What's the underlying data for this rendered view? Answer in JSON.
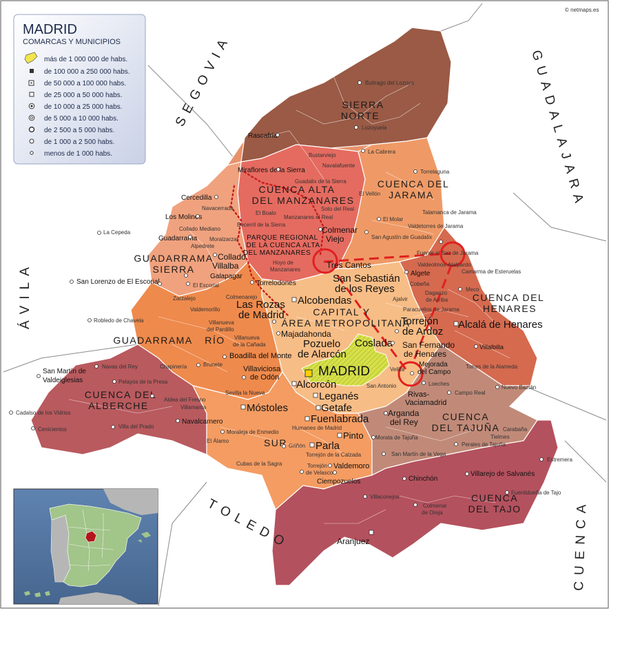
{
  "copyright": "© netmaps.es",
  "legend": {
    "title": "MADRID",
    "subtitle": "COMARCAS Y MUNICIPIOS",
    "items": [
      "más de 1 000 000 de habs.",
      "de 100 000 a 250 000 habs.",
      "de 50 000 a 100 000 habs.",
      "de 25 000 a 50 000 habs.",
      "de 10 000 a 25 000 habs.",
      "de 5 000 a 10 000 habs.",
      "de 2 500 a 5 000 habs.",
      "de 1 000 a 2 500 habs.",
      "menos de 1 000 habs."
    ]
  },
  "provinces": {
    "segovia": "SEGOVIA",
    "guadalajara": "GUADALAJARA",
    "avila": "ÁVILA",
    "toledo": "TOLEDO",
    "cuenca": "CUENCA"
  },
  "comarcas": {
    "sierra_norte_1": "SIERRA",
    "sierra_norte_2": "NORTE",
    "cuenca_alta_1": "CUENCA ALTA",
    "cuenca_alta_2": "DEL MANZANARES",
    "cuenca_jarama_1": "CUENCA DEL",
    "cuenca_jarama_2": "JARAMA",
    "guadarrama_sierra_1": "GUADARRAMA",
    "guadarrama_sierra_2": "SIERRA",
    "cuenca_henares_1": "CUENCA DEL",
    "cuenca_henares_2": "HENARES",
    "capital_1": "CAPITAL Y",
    "capital_2": "ÁREA METROPOLITANA",
    "guadarrama_rio_1": "GUADARRAMA",
    "guadarrama_rio_2": "RÍO",
    "cuenca_alberche_1": "CUENCA DEL",
    "cuenca_alberche_2": "ALBERCHE",
    "sur": "SUR",
    "cuenca_tajuna_1": "CUENCA",
    "cuenca_tajuna_2": "DEL TAJUÑA",
    "cuenca_tajo_1": "CUENCA",
    "cuenca_tajo_2": "DEL TAJO",
    "parque_1": "PARQUE REGIONAL",
    "parque_2": "DE LA CUENCA ALTA",
    "parque_3": "DEL MANZANARES"
  },
  "capital": "MADRID",
  "cities": {
    "alcala": "Alcalá de Henares",
    "alcorcon": "Alcorcón",
    "leganes": "Leganés",
    "mostoles": "Móstoles",
    "fuenlabrada": "Fuenlabrada",
    "getafe": "Getafe",
    "parla": "Parla",
    "pinto": "Pinto",
    "coslada": "Coslada",
    "alcobendas": "Alcobendas",
    "tres_cantos": "Tres Cantos",
    "ssreyes_1": "San Sebastián",
    "ssreyes_2": "de los Reyes",
    "rozas_1": "Las Rozas",
    "rozas_2": "de Madrid",
    "majadahonda": "Majadahonda",
    "pozuelo_1": "Pozuelo",
    "pozuelo_2": "de Alarcón",
    "torrejon_1": "Torrejón",
    "torrejon_2": "de Ardoz",
    "sfernando_1": "San Fernando",
    "sfernando_2": "de Henares",
    "colmenar_1": "Colmenar",
    "colmenar_2": "Viejo",
    "collado_1": "Collado",
    "collado_2": "Villalba",
    "valdemoro": "Valdemoro",
    "aranjuez": "Aranjuez",
    "arganda_1": "Arganda",
    "arganda_2": "del Rey",
    "rivas_1": "Rivas-",
    "rivas_2": "Vaciamadrid",
    "boadilla": "Boadilla del Monte",
    "villaviciosa_1": "Villaviciosa",
    "villaviciosa_2": "de Odón",
    "mejorada_1": "Mejorada",
    "mejorada_2": "del Campo",
    "villalbilla": "Villalbilla"
  },
  "municipios": {
    "rascafria": "Rascafría",
    "miraflores": "Miraflores de la Sierra",
    "cercedilla": "Cercedilla",
    "navacerrada": "Navacerrada",
    "los_molinos": "Los Molinos",
    "collado_mediano": "Collado Mediano",
    "guadarrama": "Guadarrama",
    "alpedrete": "Alpedrete",
    "moralzarzal": "Moralzarzal",
    "boalo": "El Boalo",
    "becerril": "Becerril de la Sierra",
    "manzanares": "Manzanares el Real",
    "soto": "Soto del Real",
    "guadalix": "Guadalix de la Sierra",
    "hoyo_1": "Hoyo de",
    "hoyo_2": "Manzanares",
    "torrelodones": "Torrelodones",
    "galapagar": "Galapagar",
    "escorial": "El Escorial",
    "san_lorenzo": "San Lorenzo de El Escorial",
    "la_cepeda": "La Cepeda",
    "zarzalejo": "Zarzalejo",
    "robledo": "Robledo de Chavela",
    "valdemorillo": "Valdemorillo",
    "villanueva_pardillo_1": "Villanueva",
    "villanueva_pardillo_2": "del Pardillo",
    "villanueva_canada_1": "Villanueva",
    "villanueva_canada_2": "de la Cañada",
    "brunete": "Brunete",
    "navas_rey": "Navas del Rey",
    "chapineria": "Chapinería",
    "pelayos": "Pelayos de la Presa",
    "aldea": "Aldea del Fresno",
    "villamanta": "Villamanta",
    "san_martin_1": "San Martín de",
    "san_martin_2": "Valdeiglesias",
    "cadalso": "Cadalso de los Vidrios",
    "cenicientos": "Cenicientos",
    "villa_prado": "Villa del Prado",
    "navalcarnero": "Navalcarnero",
    "sevilla_nueva": "Sevilla la Nueva",
    "moraleja": "Moraleja de Enmedio",
    "el_alamo": "El Álamo",
    "humanes": "Humanes de Madrid",
    "grinon": "Griñón",
    "cubas": "Cubas de la Sagra",
    "torrejon_calzada": "Torrejón de la Calzada",
    "torrejon_velasco_1": "Torrejón",
    "torrejon_velasco_2": "de Velasco",
    "ciempozuelos": "Ciempozuelos",
    "villaconejos": "Villaconejos",
    "chinchon": "Chinchón",
    "colmenar_oreja_1": "Colmenar",
    "colmenar_oreja_2": "de Oreja",
    "villarejo": "Villarejo de Salvanés",
    "fuentiduena": "Fuentidueña de Tajo",
    "estremera": "Estremera",
    "morata": "Morata de Tajuña",
    "san_martin_vega": "San Martín de la Vega",
    "perales": "Perales de Tajuña",
    "tielmes": "Tielmes",
    "carabana": "Carabaña",
    "campo_real": "Campo Real",
    "nuevo_baztan": "Nuevo Baztán",
    "loeches": "Loeches",
    "torres_alameda": "Torres de la Alameda",
    "velilla": "Velilla",
    "san_antonio": "San Antonio",
    "paracuellos": "Paracuellos de Jarama",
    "ajalvir": "Ajalvir",
    "daganzo_1": "Daganzo",
    "daganzo_2": "de Arriba",
    "cobena": "Cobeña",
    "algete": "Algete",
    "meco": "Meco",
    "camarma": "Camarma de Esteruelas",
    "valdeolmos": "Valdeolmos-Alalpardo",
    "fuente_saz": "Fuente el Saz de Jarama",
    "san_agustin": "San Agustín de Guadalix",
    "el_molar": "El Molar",
    "el_vellon": "El Vellón",
    "valdetorres": "Valdetorres de Jarama",
    "talamanca": "Talamanca de Jarama",
    "torrelaguna": "Torrelaguna",
    "la_cabrera": "La Cabrera",
    "buitrago": "Buitrago del Lozoya",
    "lozoyuela": "Lozoyuela",
    "navalafuente": "Navalafuente",
    "bustarviejo": "Bustarviejo",
    "colmenarejo": "Colmenarejo",
    "villalbilla": "Villalbilla",
    "pinto": "Pinto",
    "paracuellos_short": "Paracuellos"
  }
}
